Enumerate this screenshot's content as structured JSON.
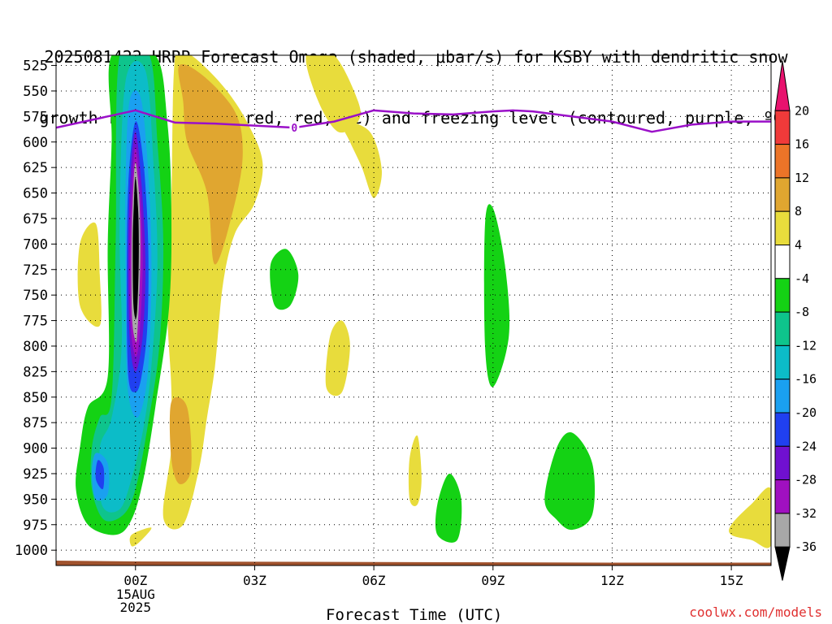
{
  "title": {
    "line1": "2025081422 HRRR Forecast Omega (shaded, μbar/s) for KSBY with dendritic snow",
    "line2": "growth region (contoured, red, ºC) and freezing level (contoured, purple, ºC)"
  },
  "credit": "coolwx.com/models",
  "chart_data": {
    "type": "heatmap",
    "xlabel": "Forecast Time (UTC)",
    "ylabel": "",
    "x_ticks": [
      {
        "hour": 0,
        "label": "00Z",
        "sub": [
          "15AUG",
          "2025"
        ]
      },
      {
        "hour": 3,
        "label": "03Z"
      },
      {
        "hour": 6,
        "label": "06Z"
      },
      {
        "hour": 9,
        "label": "09Z"
      },
      {
        "hour": 12,
        "label": "12Z"
      },
      {
        "hour": 15,
        "label": "15Z"
      }
    ],
    "xlim_hours": [
      -2,
      16
    ],
    "y_ticks": [
      525,
      550,
      575,
      600,
      625,
      650,
      675,
      700,
      725,
      750,
      775,
      800,
      825,
      850,
      875,
      900,
      925,
      950,
      975,
      1000
    ],
    "ylim_hPa": [
      1015,
      515
    ],
    "grid": true,
    "colorbar": {
      "labels": [
        20,
        16,
        12,
        8,
        4,
        -4,
        -8,
        -12,
        -16,
        -20,
        -24,
        -28,
        -32,
        -36
      ],
      "bins": [
        {
          "lo": 20,
          "hi": 24,
          "color": "#e8126e"
        },
        {
          "lo": 16,
          "hi": 20,
          "color": "#f03a3a"
        },
        {
          "lo": 12,
          "hi": 16,
          "color": "#ec7428"
        },
        {
          "lo": 8,
          "hi": 12,
          "color": "#e0a630"
        },
        {
          "lo": 4,
          "hi": 8,
          "color": "#e8dc3c"
        },
        {
          "lo": -4,
          "hi": 4,
          "color": "#ffffff"
        },
        {
          "lo": -8,
          "hi": -4,
          "color": "#14d214"
        },
        {
          "lo": -12,
          "hi": -8,
          "color": "#0ec48c"
        },
        {
          "lo": -16,
          "hi": -12,
          "color": "#0cbcc8"
        },
        {
          "lo": -20,
          "hi": -16,
          "color": "#1aa0f0"
        },
        {
          "lo": -24,
          "hi": -20,
          "color": "#2040f0"
        },
        {
          "lo": -28,
          "hi": -24,
          "color": "#7010d0"
        },
        {
          "lo": -32,
          "hi": -28,
          "color": "#a010c0"
        },
        {
          "lo": -36,
          "hi": -32,
          "color": "#a8a8a8"
        },
        {
          "lo": -40,
          "hi": -36,
          "color": "#000000"
        }
      ]
    },
    "freezing_level": {
      "label": "0",
      "label_hour": 4.0,
      "color": "#9a10c8",
      "points": [
        [
          -2,
          586
        ],
        [
          0,
          569
        ],
        [
          1,
          581
        ],
        [
          2,
          582
        ],
        [
          3,
          584
        ],
        [
          4,
          586
        ],
        [
          5,
          580
        ],
        [
          6,
          569
        ],
        [
          7,
          572
        ],
        [
          8,
          573
        ],
        [
          9,
          570
        ],
        [
          9.5,
          569
        ],
        [
          10,
          570
        ],
        [
          11,
          575
        ],
        [
          12,
          580
        ],
        [
          13,
          590
        ],
        [
          14,
          583
        ],
        [
          15,
          580
        ],
        [
          16,
          580
        ]
      ]
    },
    "omega_regions": [
      {
        "value": 6,
        "points": [
          [
            1.0,
            515
          ],
          [
            1.4,
            515
          ],
          [
            2.2,
            545
          ],
          [
            2.8,
            580
          ],
          [
            3.2,
            620
          ],
          [
            3.0,
            660
          ],
          [
            2.5,
            690
          ],
          [
            2.2,
            740
          ],
          [
            2.0,
            820
          ],
          [
            1.8,
            870
          ],
          [
            1.6,
            920
          ],
          [
            1.2,
            975
          ],
          [
            0.7,
            968
          ],
          [
            0.9,
            900
          ],
          [
            0.9,
            840
          ],
          [
            0.8,
            760
          ],
          [
            0.9,
            660
          ]
        ]
      },
      {
        "value": 10,
        "points": [
          [
            1.1,
            525
          ],
          [
            1.7,
            535
          ],
          [
            2.5,
            570
          ],
          [
            2.7,
            610
          ],
          [
            2.5,
            660
          ],
          [
            2.0,
            720
          ],
          [
            1.8,
            650
          ],
          [
            1.3,
            600
          ],
          [
            1.2,
            560
          ]
        ]
      },
      {
        "value": 10,
        "points": [
          [
            0.9,
            855
          ],
          [
            1.3,
            860
          ],
          [
            1.4,
            920
          ],
          [
            1.1,
            935
          ],
          [
            0.9,
            910
          ]
        ]
      },
      {
        "value": 6,
        "points": [
          [
            4.3,
            515
          ],
          [
            5.0,
            515
          ],
          [
            5.6,
            560
          ],
          [
            5.6,
            580
          ],
          [
            5.1,
            590
          ],
          [
            4.6,
            560
          ]
        ]
      },
      {
        "value": 6,
        "points": [
          [
            5.2,
            580
          ],
          [
            5.9,
            590
          ],
          [
            6.2,
            628
          ],
          [
            6.0,
            655
          ],
          [
            5.7,
            625
          ],
          [
            5.4,
            600
          ]
        ]
      },
      {
        "value": 6,
        "points": [
          [
            -1.4,
            700
          ],
          [
            -1.0,
            680
          ],
          [
            -0.9,
            730
          ],
          [
            -0.9,
            780
          ],
          [
            -1.4,
            760
          ]
        ]
      },
      {
        "value": 6,
        "points": [
          [
            4.9,
            790
          ],
          [
            5.2,
            775
          ],
          [
            5.4,
            800
          ],
          [
            5.2,
            845
          ],
          [
            4.8,
            840
          ]
        ]
      },
      {
        "value": 6,
        "points": [
          [
            6.9,
            910
          ],
          [
            7.1,
            888
          ],
          [
            7.2,
            930
          ],
          [
            7.1,
            955
          ],
          [
            6.9,
            950
          ]
        ]
      },
      {
        "value": 6,
        "points": [
          [
            -0.1,
            985
          ],
          [
            0.4,
            978
          ],
          [
            0.1,
            992
          ],
          [
            -0.1,
            996
          ]
        ]
      },
      {
        "value": 6,
        "points": [
          [
            15.0,
            975
          ],
          [
            15.5,
            955
          ],
          [
            16.0,
            940
          ],
          [
            16.0,
            995
          ],
          [
            15.5,
            990
          ],
          [
            15.0,
            985
          ]
        ]
      },
      {
        "value": -6,
        "points": [
          [
            3.4,
            720
          ],
          [
            3.8,
            705
          ],
          [
            4.1,
            730
          ],
          [
            3.9,
            760
          ],
          [
            3.5,
            760
          ]
        ]
      },
      {
        "value": -6,
        "points": [
          [
            8.8,
            680
          ],
          [
            9.0,
            665
          ],
          [
            9.3,
            720
          ],
          [
            9.4,
            790
          ],
          [
            9.0,
            840
          ],
          [
            8.8,
            800
          ]
        ]
      },
      {
        "value": -6,
        "points": [
          [
            7.6,
            955
          ],
          [
            7.9,
            925
          ],
          [
            8.2,
            950
          ],
          [
            8.1,
            990
          ],
          [
            7.6,
            985
          ]
        ]
      },
      {
        "value": -6,
        "points": [
          [
            10.3,
            950
          ],
          [
            10.6,
            900
          ],
          [
            11.0,
            885
          ],
          [
            11.5,
            915
          ],
          [
            11.5,
            965
          ],
          [
            11.0,
            980
          ],
          [
            10.6,
            970
          ]
        ]
      },
      {
        "value": -6,
        "points": [
          [
            -0.6,
            515
          ],
          [
            0.5,
            515
          ],
          [
            0.8,
            580
          ],
          [
            0.9,
            660
          ],
          [
            0.85,
            760
          ],
          [
            0.5,
            860
          ],
          [
            0.2,
            930
          ],
          [
            -0.1,
            970
          ],
          [
            -0.5,
            985
          ],
          [
            -1.2,
            975
          ],
          [
            -1.5,
            940
          ],
          [
            -1.4,
            900
          ],
          [
            -1.2,
            860
          ],
          [
            -0.7,
            830
          ],
          [
            -0.7,
            700
          ],
          [
            -0.6,
            600
          ]
        ]
      },
      {
        "value": -10,
        "points": [
          [
            -0.4,
            515
          ],
          [
            0.35,
            515
          ],
          [
            0.55,
            600
          ],
          [
            0.7,
            700
          ],
          [
            0.6,
            800
          ],
          [
            0.3,
            880
          ],
          [
            0.0,
            940
          ],
          [
            -0.3,
            965
          ],
          [
            -0.8,
            970
          ],
          [
            -1.1,
            940
          ],
          [
            -1.1,
            900
          ],
          [
            -0.9,
            870
          ],
          [
            -0.6,
            850
          ],
          [
            -0.5,
            700
          ]
        ]
      },
      {
        "value": -14,
        "points": [
          [
            -0.25,
            540
          ],
          [
            0.25,
            530
          ],
          [
            0.45,
            620
          ],
          [
            0.55,
            720
          ],
          [
            0.4,
            820
          ],
          [
            0.2,
            880
          ],
          [
            -0.1,
            930
          ],
          [
            -0.4,
            960
          ],
          [
            -0.85,
            955
          ],
          [
            -0.9,
            900
          ],
          [
            -0.6,
            870
          ],
          [
            -0.35,
            800
          ],
          [
            -0.4,
            680
          ]
        ]
      },
      {
        "value": -18,
        "points": [
          [
            -0.15,
            560
          ],
          [
            0.15,
            560
          ],
          [
            0.35,
            650
          ],
          [
            0.4,
            740
          ],
          [
            0.3,
            830
          ],
          [
            0.05,
            870
          ],
          [
            -0.2,
            840
          ],
          [
            -0.25,
            740
          ],
          [
            -0.25,
            640
          ]
        ]
      },
      {
        "value": -18,
        "points": [
          [
            -1.0,
            905
          ],
          [
            -0.7,
            915
          ],
          [
            -0.7,
            945
          ],
          [
            -1.0,
            950
          ],
          [
            -1.1,
            925
          ]
        ]
      },
      {
        "value": -22,
        "points": [
          [
            0.0,
            580
          ],
          [
            0.2,
            620
          ],
          [
            0.32,
            700
          ],
          [
            0.3,
            780
          ],
          [
            0.15,
            830
          ],
          [
            0.0,
            845
          ],
          [
            -0.18,
            830
          ],
          [
            -0.22,
            740
          ],
          [
            -0.18,
            640
          ]
        ]
      },
      {
        "value": -22,
        "points": [
          [
            -0.95,
            912
          ],
          [
            -0.8,
            920
          ],
          [
            -0.82,
            940
          ],
          -0.95,
          [
            -1.0,
            930
          ]
        ]
      },
      {
        "value": -26,
        "points": [
          [
            0.0,
            590
          ],
          [
            0.15,
            640
          ],
          [
            0.25,
            720
          ],
          [
            0.18,
            790
          ],
          [
            0.0,
            825
          ],
          [
            -0.15,
            790
          ],
          [
            -0.18,
            700
          ],
          [
            -0.12,
            630
          ]
        ]
      },
      {
        "value": -30,
        "points": [
          [
            0.0,
            605
          ],
          [
            0.12,
            650
          ],
          [
            0.18,
            720
          ],
          [
            0.1,
            790
          ],
          [
            0.0,
            810
          ],
          [
            -0.12,
            780
          ],
          [
            -0.14,
            700
          ],
          [
            -0.08,
            640
          ]
        ]
      },
      {
        "value": -34,
        "points": [
          [
            0.0,
            620
          ],
          [
            0.1,
            660
          ],
          [
            0.12,
            720
          ],
          [
            0.05,
            785
          ],
          [
            0.0,
            795
          ],
          [
            -0.09,
            770
          ],
          [
            -0.1,
            700
          ],
          [
            -0.06,
            650
          ]
        ]
      },
      {
        "value": -38,
        "points": [
          [
            0.0,
            635
          ],
          [
            0.07,
            670
          ],
          [
            0.08,
            720
          ],
          [
            0.03,
            770
          ],
          [
            -0.05,
            760
          ],
          [
            -0.07,
            700
          ],
          [
            -0.04,
            660
          ]
        ]
      }
    ],
    "terrain": {
      "color": "#a0522d"
    }
  }
}
